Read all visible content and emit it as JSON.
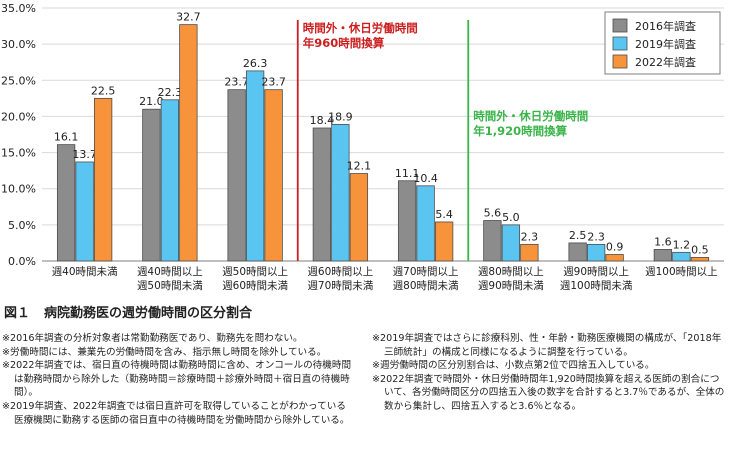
{
  "chart_data": {
    "type": "bar",
    "categories": [
      [
        "週40時間未満"
      ],
      [
        "週40時間以上",
        "週50時間未満"
      ],
      [
        "週50時間以上",
        "週60時間未満"
      ],
      [
        "週60時間以上",
        "週70時間未満"
      ],
      [
        "週70時間以上",
        "週80時間未満"
      ],
      [
        "週80時間以上",
        "週90時間未満"
      ],
      [
        "週90時間以上",
        "週100時間未満"
      ],
      [
        "週100時間以上"
      ]
    ],
    "series": [
      {
        "name": "2016年調査",
        "color": "#8c8c8c",
        "values": [
          16.1,
          21.0,
          23.7,
          18.4,
          11.1,
          5.6,
          2.5,
          1.6
        ]
      },
      {
        "name": "2019年調査",
        "color": "#5bc5f2",
        "values": [
          13.7,
          22.3,
          26.3,
          18.9,
          10.4,
          5.0,
          2.3,
          1.2
        ]
      },
      {
        "name": "2022年調査",
        "color": "#f7933b",
        "values": [
          22.5,
          32.7,
          23.7,
          12.1,
          5.4,
          2.3,
          0.9,
          0.5
        ]
      }
    ],
    "value_labels": [
      [
        "16.1",
        "21.0",
        "23.7",
        "18.4",
        "11.1",
        "5.6",
        "2.5",
        "1.6"
      ],
      [
        "13.7",
        "22.3",
        "26.3",
        "18.9",
        "10.4",
        "5.0",
        "2.3",
        "1.2"
      ],
      [
        "22.5",
        "32.7",
        "23.7",
        "12.1",
        "5.4",
        "2.3",
        "0.9",
        "0.5"
      ]
    ],
    "ylim": [
      0,
      35
    ],
    "yticks": [
      0,
      5,
      10,
      15,
      20,
      25,
      30,
      35
    ],
    "ytick_labels": [
      "0.0%",
      "5.0%",
      "10.0%",
      "15.0%",
      "20.0%",
      "25.0%",
      "30.0%",
      "35.0%"
    ],
    "xlabel": "",
    "ylabel": "",
    "legend_position": "top-right",
    "annotations": [
      {
        "after_category": 2,
        "color": "#cc1f1f",
        "lines": [
          "時間外・休日労働時間",
          "年960時間換算"
        ]
      },
      {
        "after_category": 4,
        "color": "#39b54a",
        "lines": [
          "時間外・休日労働時間",
          "年1,920時間換算"
        ]
      }
    ]
  },
  "figure": {
    "number": "図１",
    "caption": "病院勤務医の週労働時間の区分割合"
  },
  "notes_left": [
    "※2016年調査の分析対象者は常勤勤務医であり、勤務先を問わない。",
    "※労働時間には、兼業先の労働時間を含み、指示無し時間を除外している。",
    "※2022年調査では、宿日直の待機時間は勤務時間に含め、オンコールの待機時間は勤務時間から除外した（勤務時間＝診療時間＋診療外時間＋宿日直の待機時間）。",
    "※2019年調査、2022年調査では宿日直許可を取得していることがわかっている医療機関に勤務する医師の宿日直中の待機時間を労働時間から除外している。"
  ],
  "notes_right": [
    "※2019年調査ではさらに診療科別、性・年齢・勤務医療機関の構成が、「2018年三師統計」の構成と同様になるように調整を行っている。",
    "※週労働時間の区分別割合は、小数点第2位で四捨五入している。",
    "※2022年調査で時間外・休日労働時間年1,920時間換算を超える医師の割合について、各労働時間区分の四捨五入後の数字を合計すると3.7％であるが、全体の数から集計し、四捨五入すると3.6％となる。"
  ]
}
